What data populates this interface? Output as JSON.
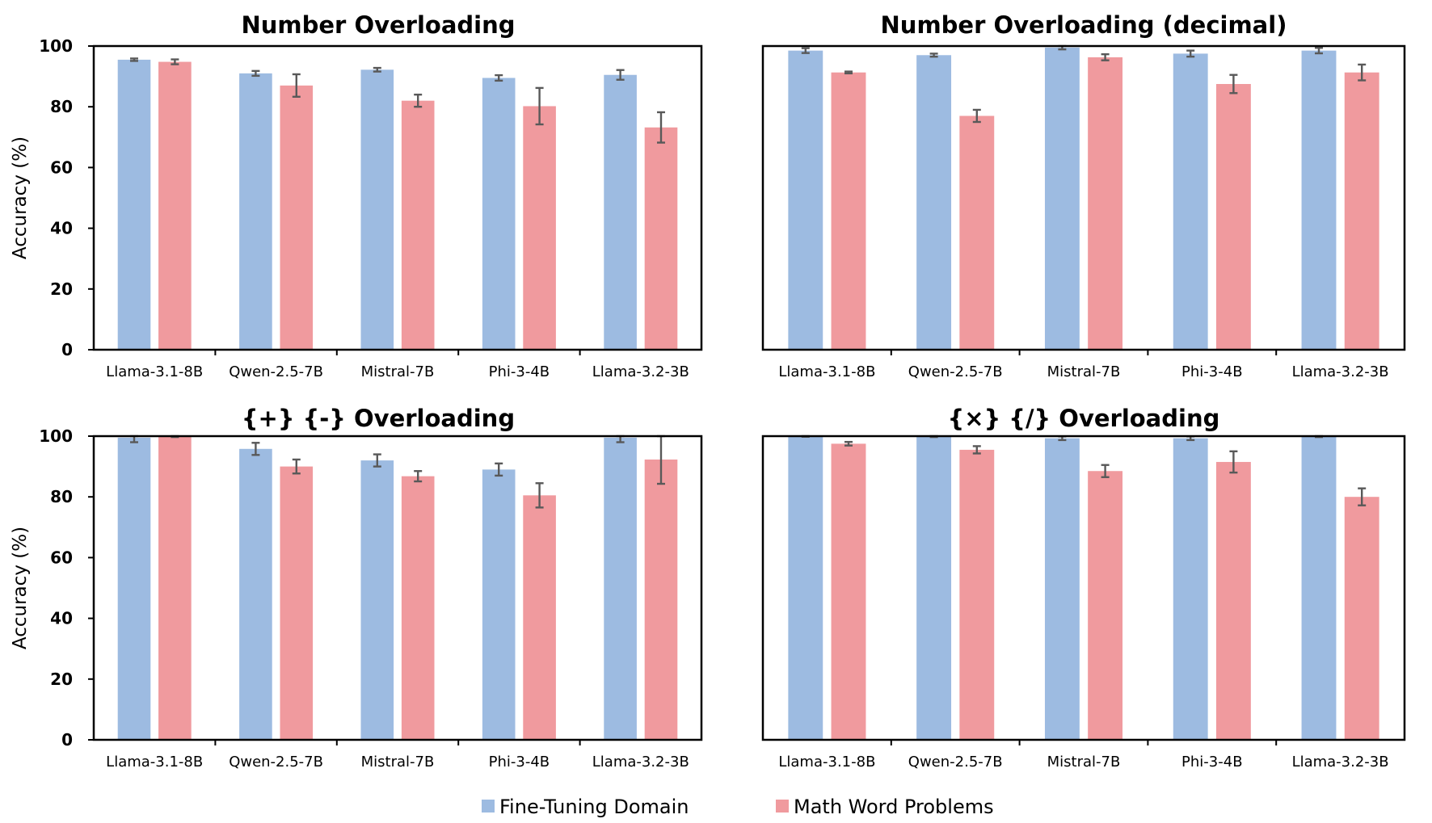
{
  "chart_data": [
    {
      "type": "bar",
      "title": "Number Overloading",
      "ylabel": "Accuracy (%)",
      "ylim": [
        0,
        100
      ],
      "yticks": [
        "0",
        "20",
        "40",
        "60",
        "80",
        "100"
      ],
      "categories": [
        "Llama-3.1-8B",
        "Qwen-2.5-7B",
        "Mistral-7B",
        "Phi-3-4B",
        "Llama-3.2-3B"
      ],
      "series": [
        {
          "name": "Fine-Tuning Domain",
          "values": [
            95.5,
            91.0,
            92.2,
            89.5,
            90.5
          ],
          "errors": [
            0.4,
            0.8,
            0.6,
            0.9,
            1.6
          ]
        },
        {
          "name": "Math Word Problems",
          "values": [
            94.8,
            87.0,
            82.0,
            80.2,
            73.2
          ],
          "errors": [
            0.8,
            3.7,
            2.0,
            6.0,
            5.0
          ]
        }
      ]
    },
    {
      "type": "bar",
      "title": "Number Overloading  (decimal)",
      "ylim": [
        0,
        100
      ],
      "categories": [
        "Llama-3.1-8B",
        "Qwen-2.5-7B",
        "Mistral-7B",
        "Phi-3-4B",
        "Llama-3.2-3B"
      ],
      "series": [
        {
          "name": "Fine-Tuning Domain",
          "values": [
            98.5,
            97.0,
            99.5,
            97.5,
            98.5
          ],
          "errors": [
            0.8,
            0.5,
            0.6,
            1.0,
            0.9
          ]
        },
        {
          "name": "Math Word Problems",
          "values": [
            91.3,
            77.0,
            96.3,
            87.5,
            91.3
          ],
          "errors": [
            0.3,
            2.0,
            1.0,
            3.0,
            2.6
          ]
        }
      ]
    },
    {
      "type": "bar",
      "title": "{+} {-} Overloading",
      "ylabel": "Accuracy (%)",
      "ylim": [
        0,
        100
      ],
      "yticks": [
        "0",
        "20",
        "40",
        "60",
        "80",
        "100"
      ],
      "categories": [
        "Llama-3.1-8B",
        "Qwen-2.5-7B",
        "Mistral-7B",
        "Phi-3-4B",
        "Llama-3.2-3B"
      ],
      "series": [
        {
          "name": "Fine-Tuning Domain",
          "values": [
            99.5,
            95.8,
            92.0,
            89.0,
            99.5
          ],
          "errors": [
            1.5,
            2.0,
            2.0,
            2.0,
            1.5
          ]
        },
        {
          "name": "Math Word Problems",
          "values": [
            100.0,
            90.0,
            86.8,
            80.5,
            92.3
          ],
          "errors": [
            0.3,
            2.3,
            1.7,
            4.0,
            8.0
          ]
        }
      ]
    },
    {
      "type": "bar",
      "title": "{×} {/} Overloading",
      "ylim": [
        0,
        100
      ],
      "categories": [
        "Llama-3.1-8B",
        "Qwen-2.5-7B",
        "Mistral-7B",
        "Phi-3-4B",
        "Llama-3.2-3B"
      ],
      "series": [
        {
          "name": "Fine-Tuning Domain",
          "values": [
            100.0,
            100.0,
            99.3,
            99.3,
            100.0
          ],
          "errors": [
            0.2,
            0.3,
            0.6,
            0.6,
            0.3
          ]
        },
        {
          "name": "Math Word Problems",
          "values": [
            97.5,
            95.5,
            88.5,
            91.5,
            80.0
          ],
          "errors": [
            0.6,
            1.2,
            2.0,
            3.5,
            2.8
          ]
        }
      ]
    }
  ],
  "legend": {
    "placement": "bottom",
    "items": [
      {
        "label": "Fine-Tuning Domain",
        "color": "#9dbbe1"
      },
      {
        "label": "Math Word Problems",
        "color": "#f09a9e"
      }
    ]
  },
  "colors": {
    "fine_tuning": "#9dbbe1",
    "math_word": "#f09a9e",
    "error_bar": "#595959"
  }
}
